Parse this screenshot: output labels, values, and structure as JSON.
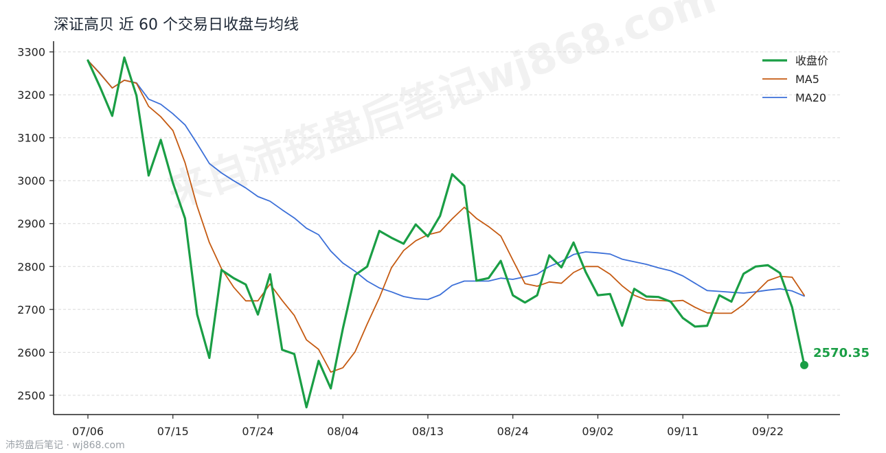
{
  "chart_data": {
    "type": "line",
    "title": "深证高贝 近 60 个交易日收盘与均线",
    "xlabel": "",
    "ylabel": "",
    "ylim": [
      2455,
      3325
    ],
    "y_ticks": [
      2500,
      2600,
      2700,
      2800,
      2900,
      3000,
      3100,
      3200,
      3300
    ],
    "x_ticks": [
      {
        "index": 0,
        "label": "07/06"
      },
      {
        "index": 7,
        "label": "07/15"
      },
      {
        "index": 14,
        "label": "07/24"
      },
      {
        "index": 21,
        "label": "08/04"
      },
      {
        "index": 28,
        "label": "08/13"
      },
      {
        "index": 35,
        "label": "08/24"
      },
      {
        "index": 42,
        "label": "09/02"
      },
      {
        "index": 49,
        "label": "09/11"
      },
      {
        "index": 56,
        "label": "09/22"
      }
    ],
    "grid": "horizontal dashed",
    "legend_position": "top-right",
    "series": [
      {
        "name": "收盘价",
        "color": "#1a9e45",
        "width": 3.2,
        "values": [
          3280,
          3218,
          3151,
          3287,
          3198,
          3012,
          3095,
          2995,
          2912,
          2688,
          2587,
          2792,
          2773,
          2758,
          2688,
          2782,
          2606,
          2596,
          2472,
          2580,
          2516,
          2655,
          2780,
          2800,
          2883,
          2867,
          2853,
          2898,
          2870,
          2918,
          3015,
          2988,
          2767,
          2773,
          2813,
          2733,
          2716,
          2733,
          2826,
          2798,
          2856,
          2787,
          2733,
          2736,
          2662,
          2748,
          2730,
          2729,
          2718,
          2680,
          2660,
          2662,
          2733,
          2718,
          2783,
          2800,
          2803,
          2785,
          2705,
          2570.35
        ]
      },
      {
        "name": "MA5",
        "color": "#c55a11",
        "width": 1.8,
        "values": [
          3280,
          3249,
          3216,
          3234,
          3227,
          3173,
          3149,
          3117,
          3042,
          2940,
          2856,
          2795,
          2752,
          2720,
          2720,
          2759,
          2721,
          2686,
          2629,
          2607,
          2554,
          2564,
          2601,
          2666,
          2727,
          2797,
          2837,
          2860,
          2874,
          2881,
          2911,
          2938,
          2912,
          2893,
          2871,
          2815,
          2760,
          2754,
          2764,
          2761,
          2786,
          2800,
          2800,
          2782,
          2755,
          2733,
          2722,
          2721,
          2719,
          2721,
          2705,
          2692,
          2691,
          2691,
          2711,
          2739,
          2767,
          2777,
          2775,
          2733
        ]
      },
      {
        "name": "MA20",
        "color": "#3b6fd8",
        "width": 1.8,
        "values": [
          3280,
          3250,
          3216,
          3234,
          3228,
          3190,
          3178,
          3156,
          3130,
          3086,
          3040,
          3018,
          3000,
          2983,
          2963,
          2952,
          2932,
          2913,
          2889,
          2874,
          2836,
          2808,
          2789,
          2766,
          2750,
          2741,
          2730,
          2725,
          2723,
          2734,
          2756,
          2766,
          2766,
          2766,
          2773,
          2770,
          2776,
          2782,
          2800,
          2812,
          2828,
          2834,
          2832,
          2829,
          2817,
          2811,
          2805,
          2797,
          2790,
          2778,
          2761,
          2744,
          2742,
          2740,
          2738,
          2741,
          2745,
          2748,
          2743,
          2731
        ]
      }
    ],
    "end_label": "2570.35"
  },
  "page": {
    "footer": "沛筠盘后笔记 · wj868.com",
    "watermark": "来自沛筠盘后笔记wj868.com"
  }
}
